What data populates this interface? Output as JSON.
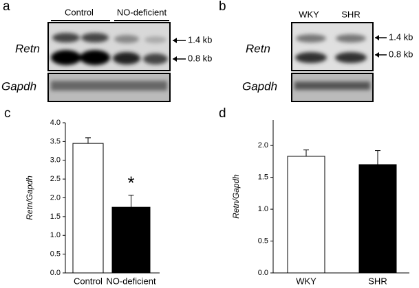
{
  "panels": {
    "a": {
      "label": "a",
      "groups": [
        "Control",
        "NO-deficient"
      ],
      "rows": [
        "Retn",
        "Gapdh"
      ],
      "markers": [
        "1.4 kb",
        "0.8 kb"
      ]
    },
    "b": {
      "label": "b",
      "groups": [
        "WKY",
        "SHR"
      ],
      "rows": [
        "Retn",
        "Gapdh"
      ],
      "markers": [
        "1.4 kb",
        "0.8 kb"
      ]
    }
  },
  "chart_data": [
    {
      "type": "bar",
      "label": "c",
      "ylabel": "Retn/Gapdh",
      "categories": [
        "Control",
        "NO-deficient"
      ],
      "values": [
        3.45,
        1.75
      ],
      "errors": [
        0.15,
        0.32
      ],
      "colors": [
        "#ffffff",
        "#000000"
      ],
      "annotation": "*",
      "ylim": [
        0,
        4
      ],
      "yticks": [
        {
          "value": 0,
          "label": "0.0"
        },
        0.5,
        {
          "value": 1,
          "label": "1.0"
        },
        1.5,
        {
          "value": 2,
          "label": "2.0"
        },
        2.5,
        {
          "value": 3,
          "label": "3.0"
        },
        3.5,
        {
          "value": 4,
          "label": "4.0"
        }
      ]
    },
    {
      "type": "bar",
      "label": "d",
      "ylabel": "Retn/Gapdh",
      "categories": [
        "WKY",
        "SHR"
      ],
      "values": [
        1.83,
        1.7
      ],
      "errors": [
        0.1,
        0.22
      ],
      "colors": [
        "#ffffff",
        "#000000"
      ],
      "ylim": [
        0,
        2.4
      ],
      "yticks": [
        {
          "value": 0,
          "label": "0.0"
        },
        0.5,
        {
          "value": 1,
          "label": "1.0"
        },
        1.5,
        {
          "value": 2,
          "label": "2.0"
        }
      ]
    }
  ]
}
